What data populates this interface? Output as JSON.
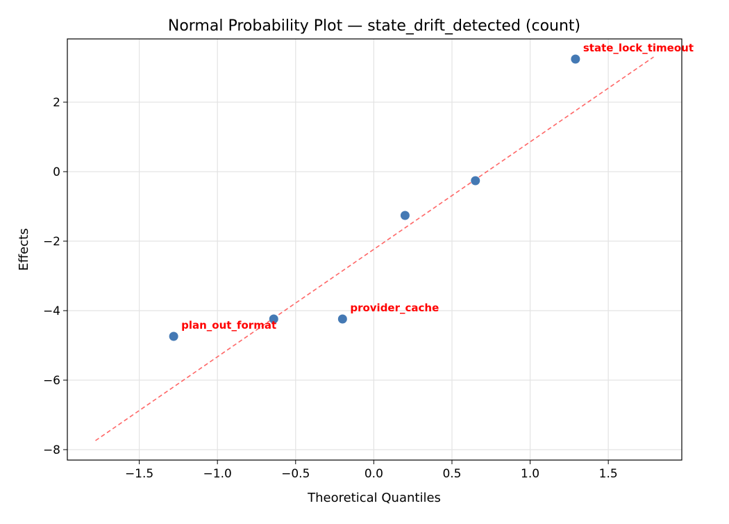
{
  "chart_data": {
    "type": "scatter",
    "title": "Normal Probability Plot — state_drift_detected (count)",
    "xlabel": "Theoretical Quantiles",
    "ylabel": "Effects",
    "xlim": [
      -1.96,
      1.97
    ],
    "ylim": [
      -8.3,
      3.82
    ],
    "xticks": [
      -1.5,
      -1.0,
      -0.5,
      0.0,
      0.5,
      1.0,
      1.5
    ],
    "xtick_labels": [
      "−1.5",
      "−1.0",
      "−0.5",
      "0.0",
      "0.5",
      "1.0",
      "1.5"
    ],
    "yticks": [
      2,
      0,
      -2,
      -4,
      -6,
      -8
    ],
    "ytick_labels": [
      "2",
      "0",
      "−2",
      "−4",
      "−6",
      "−8"
    ],
    "grid": true,
    "points": [
      {
        "x": -1.28,
        "y": -4.74,
        "label": "plan_out_format"
      },
      {
        "x": -0.64,
        "y": -4.24,
        "label": ""
      },
      {
        "x": -0.2,
        "y": -4.24,
        "label": "provider_cache"
      },
      {
        "x": 0.2,
        "y": -1.26,
        "label": ""
      },
      {
        "x": 0.65,
        "y": -0.26,
        "label": ""
      },
      {
        "x": 1.29,
        "y": 3.24,
        "label": "state_lock_timeout"
      }
    ],
    "reference_line": {
      "x": [
        -1.78,
        1.79
      ],
      "y": [
        -7.74,
        3.3
      ],
      "style": "dashed"
    },
    "colors": {
      "points": "#4479b4",
      "line": "#ff6666",
      "labels": "#ff0000"
    }
  }
}
